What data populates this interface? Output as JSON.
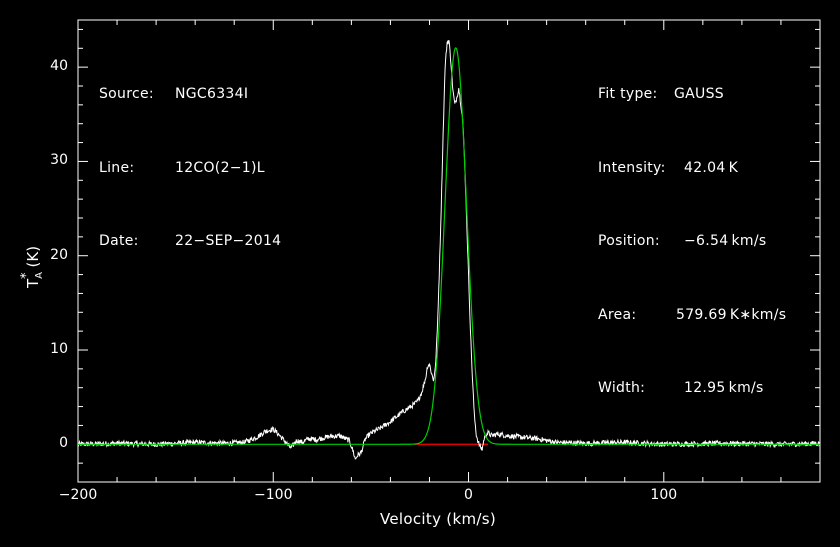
{
  "info_left": [
    {
      "key": "Source:",
      "value": "NGC6334I"
    },
    {
      "key": "Line:",
      "value": "12CO(2−1)L"
    },
    {
      "key": "Date:",
      "value": "22−SEP−2014"
    }
  ],
  "info_right": [
    {
      "key": "Fit type:",
      "value": "GAUSS"
    },
    {
      "key": "Intensity:",
      "value": "42.04 K"
    },
    {
      "key": "Position:",
      "value": "−6.54 km/s"
    },
    {
      "key": "Area:",
      "value": "579.69 K∗km/s"
    },
    {
      "key": "Width:",
      "value": "12.95 km/s"
    }
  ],
  "chart_data": {
    "type": "line",
    "xlabel": "Velocity (km/s)",
    "ylabel_main": "T",
    "ylabel_sub": "A",
    "ylabel_sup": "*",
    "ylabel_unit": "(K)",
    "xlim": [
      -200,
      180
    ],
    "ylim": [
      -4,
      45
    ],
    "x_ticks": [
      {
        "value": -200,
        "label": "−200"
      },
      {
        "value": -100,
        "label": "−100"
      },
      {
        "value": 0,
        "label": "0"
      },
      {
        "value": 100,
        "label": "100"
      }
    ],
    "y_ticks": [
      {
        "value": 0,
        "label": "0"
      },
      {
        "value": 10,
        "label": "10"
      },
      {
        "value": 20,
        "label": "20"
      },
      {
        "value": 30,
        "label": "30"
      },
      {
        "value": 40,
        "label": "40"
      }
    ],
    "colors": {
      "spectrum": "#ffffff",
      "fit": "#00cc00",
      "fit_window": "#ff0000",
      "axes": "#ffffff"
    },
    "fit": {
      "amplitude": 42.04,
      "center": -6.54,
      "fwhm": 12.95,
      "window": [
        -28,
        10
      ]
    },
    "series": [
      {
        "name": "spectrum",
        "x": [
          -200,
          -180,
          -160,
          -140,
          -125,
          -115,
          -108,
          -104,
          -100,
          -97,
          -94,
          -91,
          -88,
          -85,
          -82,
          -78,
          -72,
          -66,
          -61,
          -59,
          -58,
          -57,
          -55,
          -53,
          -51,
          -49,
          -46,
          -43,
          -40,
          -37,
          -34,
          -31,
          -28,
          -26,
          -24,
          -22,
          -21,
          -20,
          -19,
          -18,
          -17,
          -16,
          -15,
          -14,
          -13,
          -12,
          -11,
          -10,
          -9,
          -8,
          -7,
          -6,
          -5,
          -4,
          -3,
          -2,
          -1,
          0,
          1,
          2,
          3,
          4,
          5,
          6,
          7,
          8,
          9,
          10,
          12,
          15,
          20,
          25,
          30,
          35,
          40,
          45,
          60,
          80,
          100,
          130,
          160,
          180
        ],
        "values": [
          0.0,
          0.1,
          0.0,
          0.2,
          0.1,
          0.2,
          0.8,
          1.4,
          1.6,
          1.0,
          0.3,
          -0.4,
          0.4,
          0.2,
          0.6,
          0.5,
          0.8,
          0.9,
          0.4,
          -0.8,
          -1.6,
          -1.2,
          -0.9,
          0.5,
          1.0,
          1.3,
          1.6,
          2.0,
          2.4,
          2.9,
          3.4,
          3.8,
          4.2,
          4.6,
          5.5,
          7.0,
          8.3,
          8.5,
          7.6,
          6.8,
          8.0,
          12.0,
          18.0,
          25.0,
          33.0,
          40.0,
          42.6,
          42.8,
          40.5,
          37.5,
          36.0,
          36.8,
          37.8,
          36.2,
          34.5,
          30.0,
          24.0,
          18.0,
          12.0,
          7.0,
          3.0,
          1.0,
          0.2,
          -0.3,
          -0.5,
          0.6,
          1.1,
          1.2,
          0.9,
          1.1,
          0.9,
          0.8,
          0.7,
          0.6,
          0.4,
          0.2,
          0.1,
          0.2,
          0.0,
          0.1,
          0.0,
          0.1
        ]
      }
    ]
  }
}
